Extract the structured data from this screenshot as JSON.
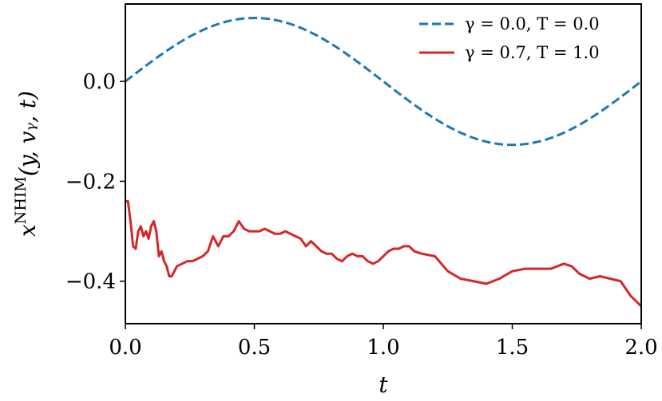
{
  "chart_data": {
    "type": "line",
    "xlabel": "t",
    "ylabel": "x^NHIM(y, v_y, t)",
    "xlim": [
      0.0,
      2.0
    ],
    "ylim": [
      -0.485,
      0.155
    ],
    "x_ticks": [
      0.0,
      0.5,
      1.0,
      1.5,
      2.0
    ],
    "x_tick_labels": [
      "0.0",
      "0.5",
      "1.0",
      "1.5",
      "2.0"
    ],
    "y_ticks": [
      0.0,
      -0.2,
      -0.4
    ],
    "y_tick_labels": [
      "0.0",
      "−0.2",
      "−0.4"
    ],
    "grid": false,
    "legend_position": "top-right",
    "series": [
      {
        "name": "γ = 0.0, T = 0.0",
        "color": "#1f77b4",
        "style": "dashed",
        "function": "0.127*sin(pi*t)"
      },
      {
        "name": "γ = 0.7, T = 1.0",
        "color": "#d62728",
        "style": "solid",
        "x": [
          0.0,
          0.01,
          0.02,
          0.03,
          0.04,
          0.05,
          0.06,
          0.07,
          0.08,
          0.09,
          0.1,
          0.11,
          0.12,
          0.13,
          0.14,
          0.15,
          0.16,
          0.17,
          0.18,
          0.19,
          0.2,
          0.22,
          0.24,
          0.26,
          0.28,
          0.3,
          0.32,
          0.34,
          0.36,
          0.38,
          0.4,
          0.42,
          0.44,
          0.46,
          0.48,
          0.5,
          0.52,
          0.54,
          0.56,
          0.58,
          0.6,
          0.62,
          0.64,
          0.66,
          0.68,
          0.7,
          0.72,
          0.74,
          0.76,
          0.78,
          0.8,
          0.82,
          0.84,
          0.86,
          0.88,
          0.9,
          0.92,
          0.94,
          0.96,
          0.98,
          1.0,
          1.02,
          1.04,
          1.06,
          1.08,
          1.1,
          1.12,
          1.15,
          1.2,
          1.25,
          1.3,
          1.35,
          1.4,
          1.45,
          1.5,
          1.55,
          1.6,
          1.65,
          1.7,
          1.73,
          1.76,
          1.8,
          1.84,
          1.88,
          1.92,
          1.96,
          2.0
        ],
        "values": [
          -0.24,
          -0.24,
          -0.28,
          -0.33,
          -0.335,
          -0.3,
          -0.29,
          -0.31,
          -0.3,
          -0.315,
          -0.29,
          -0.28,
          -0.3,
          -0.35,
          -0.34,
          -0.36,
          -0.37,
          -0.39,
          -0.39,
          -0.38,
          -0.37,
          -0.365,
          -0.36,
          -0.36,
          -0.355,
          -0.35,
          -0.34,
          -0.31,
          -0.33,
          -0.31,
          -0.31,
          -0.3,
          -0.28,
          -0.295,
          -0.3,
          -0.3,
          -0.3,
          -0.295,
          -0.3,
          -0.305,
          -0.305,
          -0.3,
          -0.305,
          -0.31,
          -0.315,
          -0.33,
          -0.32,
          -0.33,
          -0.34,
          -0.345,
          -0.345,
          -0.355,
          -0.36,
          -0.35,
          -0.345,
          -0.35,
          -0.35,
          -0.36,
          -0.365,
          -0.36,
          -0.35,
          -0.34,
          -0.335,
          -0.335,
          -0.33,
          -0.33,
          -0.34,
          -0.345,
          -0.35,
          -0.38,
          -0.395,
          -0.4,
          -0.405,
          -0.395,
          -0.38,
          -0.375,
          -0.375,
          -0.375,
          -0.365,
          -0.37,
          -0.385,
          -0.395,
          -0.39,
          -0.395,
          -0.4,
          -0.43,
          -0.45
        ]
      }
    ]
  }
}
